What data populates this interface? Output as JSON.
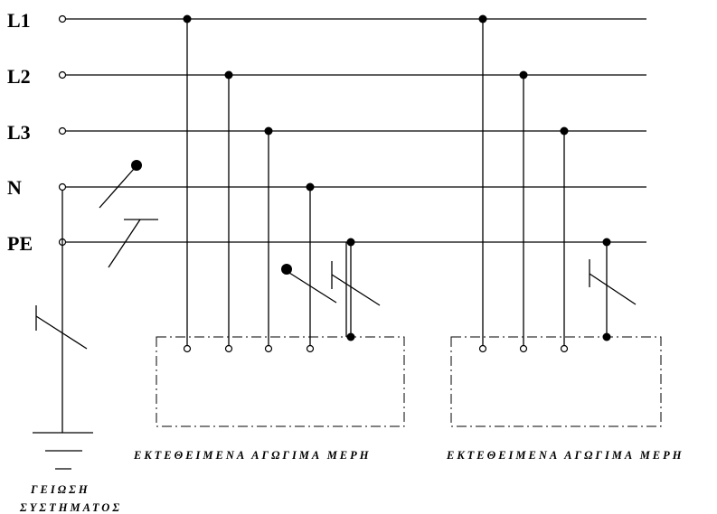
{
  "diagram": {
    "bus_labels": [
      "L1",
      "L2",
      "L3",
      "N",
      "PE"
    ],
    "enclosure_1_caption": "ΕΚΤΕΘΕΙΜΕΝΑ ΑΓΩΓΙΜΑ ΜΕΡΗ",
    "enclosure_2_caption": "ΕΚΤΕΘΕΙΜΕΝΑ ΑΓΩΓΙΜΑ ΜΕΡΗ",
    "earth_caption_line1": "ΓΕΙΩΣΗ",
    "earth_caption_line2": "ΣΥΣΤΗΜΑΤΟΣ"
  }
}
